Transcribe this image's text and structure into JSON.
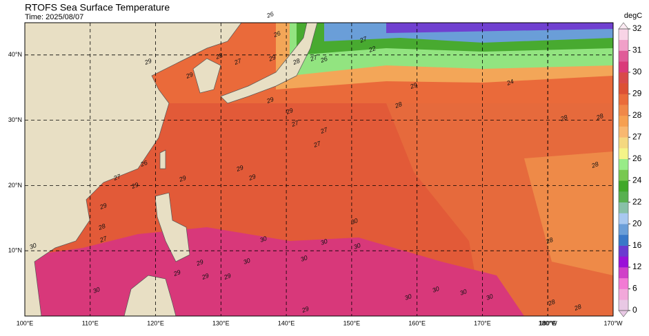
{
  "title": "RTOFS Sea Surface Temperature",
  "time": "Time: 2025/08/07",
  "colorbar": {
    "unit": "degC",
    "ticks": [
      0,
      6,
      12,
      16,
      20,
      22,
      24,
      26,
      27,
      28,
      29,
      30,
      31,
      32
    ],
    "colors": [
      [
        "#e8c8e4",
        "#f2a8da"
      ],
      [
        "#f27ad4",
        "#d040c8"
      ],
      [
        "#9a10d8",
        "#6a3ad0"
      ],
      [
        "#3878c8",
        "#6a9ed8"
      ],
      [
        "#a8c8f0",
        "#88c0a8"
      ],
      [
        "#58b050",
        "#40a828"
      ],
      [
        "#78c850",
        "#98ec88"
      ],
      [
        "#f4f488",
        "#f4d880"
      ],
      [
        "#f8b870",
        "#f6a050"
      ],
      [
        "#f08848",
        "#ea6c3a"
      ],
      [
        "#dc5034",
        "#d84a4a"
      ],
      [
        "#da3a7a",
        "#e05c98"
      ],
      [
        "#f0a0c8",
        "#f8d4e6"
      ]
    ],
    "top": "#fbeaf2"
  },
  "lon_ticks": [
    {
      "value": 100,
      "label": "100°E"
    },
    {
      "value": 110,
      "label": "110°E"
    },
    {
      "value": 120,
      "label": "120°E"
    },
    {
      "value": 130,
      "label": "130°E"
    },
    {
      "value": 140,
      "label": "140°E"
    },
    {
      "value": 150,
      "label": "150°E"
    },
    {
      "value": 160,
      "label": "160°E"
    },
    {
      "value": 170,
      "label": "170°E"
    },
    {
      "value": 180,
      "label": "180°E"
    },
    {
      "value": 180,
      "label": "180°W"
    },
    {
      "value": 190,
      "label": "170°W"
    }
  ],
  "lat_ticks": [
    {
      "value": 10,
      "label": "10°N"
    },
    {
      "value": 20,
      "label": "20°N"
    },
    {
      "value": 30,
      "label": "30°N"
    },
    {
      "value": 40,
      "label": "40°N"
    }
  ],
  "contour_labels": [
    "29",
    "29",
    "28",
    "27",
    "26",
    "26",
    "22",
    "27",
    "29",
    "28",
    "27",
    "26",
    "24",
    "29",
    "29",
    "28",
    "29",
    "27",
    "27",
    "28",
    "27",
    "29",
    "29",
    "29",
    "29",
    "29",
    "28",
    "28",
    "28",
    "30",
    "30",
    "30",
    "30",
    "30",
    "30",
    "30",
    "30",
    "30",
    "30",
    "29",
    "29",
    "29",
    "29",
    "28",
    "28",
    "28",
    "27",
    "26",
    "27",
    "30",
    "30",
    "29"
  ]
}
